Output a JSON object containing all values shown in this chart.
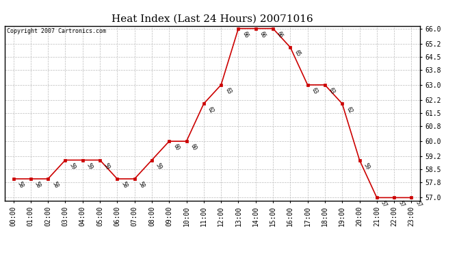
{
  "title": "Heat Index (Last 24 Hours) 20071016",
  "copyright": "Copyright 2007 Cartronics.com",
  "hours": [
    "00:00",
    "01:00",
    "02:00",
    "03:00",
    "04:00",
    "05:00",
    "06:00",
    "07:00",
    "08:00",
    "09:00",
    "10:00",
    "11:00",
    "12:00",
    "13:00",
    "14:00",
    "15:00",
    "16:00",
    "17:00",
    "18:00",
    "19:00",
    "20:00",
    "21:00",
    "22:00",
    "23:00"
  ],
  "values": [
    58,
    58,
    58,
    59,
    59,
    59,
    58,
    58,
    59,
    60,
    60,
    62,
    63,
    66,
    66,
    66,
    65,
    63,
    63,
    62,
    59,
    57,
    57,
    57
  ],
  "yticks": [
    57.0,
    57.8,
    58.5,
    59.2,
    60.0,
    60.8,
    61.5,
    62.2,
    63.0,
    63.8,
    64.5,
    65.2,
    66.0
  ],
  "line_color": "#cc0000",
  "marker_color": "#cc0000",
  "bg_color": "#ffffff",
  "grid_color": "#bbbbbb",
  "title_fontsize": 11,
  "tick_fontsize": 7,
  "annotation_fontsize": 5.5,
  "copyright_fontsize": 6,
  "border_color": "#000000",
  "ylim_low": 56.85,
  "ylim_high": 66.15
}
